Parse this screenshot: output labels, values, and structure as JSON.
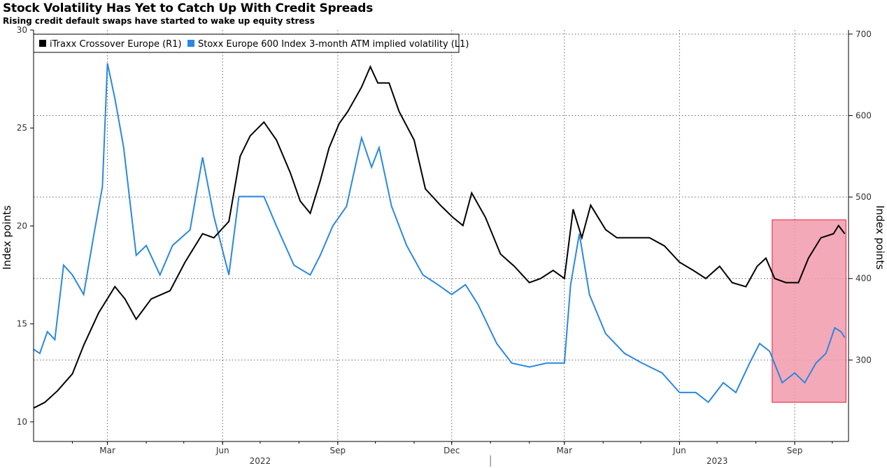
{
  "title": "Stock Volatility Has Yet to Catch Up With Credit Spreads",
  "subtitle": "Rising credit default swaps have started to wake up equity stress",
  "colors": {
    "itraxx": "#000000",
    "vol": "#2a88e0",
    "highlight": "#f29aab",
    "highlight_border": "#e0203a"
  },
  "chart_data": {
    "type": "line",
    "x_start": "2022-01-01",
    "x_end": "2023-10-14",
    "left_axis": {
      "label": "Index points",
      "min": 9,
      "max": 30,
      "ticks": [
        10,
        15,
        20,
        25,
        30
      ]
    },
    "right_axis": {
      "label": "Index points",
      "min": 200,
      "max": 705,
      "ticks": [
        300,
        400,
        500,
        600,
        700
      ]
    },
    "month_ticks": [
      {
        "date": "2022-03-01",
        "label": "Mar"
      },
      {
        "date": "2022-06-01",
        "label": "Jun"
      },
      {
        "date": "2022-09-01",
        "label": "Sep"
      },
      {
        "date": "2022-12-01",
        "label": "Dec"
      },
      {
        "date": "2023-03-01",
        "label": "Mar"
      },
      {
        "date": "2023-06-01",
        "label": "Jun"
      },
      {
        "date": "2023-09-01",
        "label": "Sep"
      }
    ],
    "year_labels": [
      {
        "date": "2022-07-01",
        "label": "2022"
      },
      {
        "date": "2023-07-01",
        "label": "2023"
      }
    ],
    "year_divider": "2023-01-01",
    "highlight": {
      "from": "2023-08-14",
      "to": "2023-10-12"
    },
    "series": [
      {
        "name": "iTraxx Crossover Europe (R1)",
        "axis": "right",
        "points": [
          [
            "2022-01-01",
            241
          ],
          [
            "2022-01-10",
            248
          ],
          [
            "2022-01-20",
            262
          ],
          [
            "2022-02-01",
            283
          ],
          [
            "2022-02-10",
            318
          ],
          [
            "2022-02-22",
            358
          ],
          [
            "2022-03-07",
            390
          ],
          [
            "2022-03-15",
            375
          ],
          [
            "2022-03-24",
            350
          ],
          [
            "2022-04-05",
            375
          ],
          [
            "2022-04-20",
            385
          ],
          [
            "2022-05-02",
            420
          ],
          [
            "2022-05-16",
            455
          ],
          [
            "2022-05-25",
            450
          ],
          [
            "2022-06-06",
            470
          ],
          [
            "2022-06-15",
            550
          ],
          [
            "2022-06-23",
            575
          ],
          [
            "2022-07-04",
            592
          ],
          [
            "2022-07-14",
            570
          ],
          [
            "2022-07-25",
            530
          ],
          [
            "2022-08-02",
            495
          ],
          [
            "2022-08-10",
            480
          ],
          [
            "2022-08-18",
            520
          ],
          [
            "2022-08-25",
            560
          ],
          [
            "2022-09-02",
            590
          ],
          [
            "2022-09-09",
            605
          ],
          [
            "2022-09-20",
            635
          ],
          [
            "2022-09-27",
            660
          ],
          [
            "2022-10-03",
            640
          ],
          [
            "2022-10-12",
            640
          ],
          [
            "2022-10-20",
            605
          ],
          [
            "2022-11-01",
            570
          ],
          [
            "2022-11-10",
            510
          ],
          [
            "2022-11-22",
            490
          ],
          [
            "2022-12-02",
            475
          ],
          [
            "2022-12-10",
            465
          ],
          [
            "2022-12-17",
            505
          ],
          [
            "2022-12-28",
            475
          ],
          [
            "2023-01-09",
            430
          ],
          [
            "2023-01-20",
            415
          ],
          [
            "2023-02-01",
            395
          ],
          [
            "2023-02-10",
            400
          ],
          [
            "2023-02-20",
            410
          ],
          [
            "2023-03-01",
            400
          ],
          [
            "2023-03-08",
            485
          ],
          [
            "2023-03-15",
            450
          ],
          [
            "2023-03-22",
            490
          ],
          [
            "2023-04-03",
            460
          ],
          [
            "2023-04-12",
            450
          ],
          [
            "2023-04-24",
            450
          ],
          [
            "2023-05-08",
            450
          ],
          [
            "2023-05-20",
            440
          ],
          [
            "2023-06-01",
            420
          ],
          [
            "2023-06-12",
            410
          ],
          [
            "2023-06-22",
            400
          ],
          [
            "2023-07-03",
            415
          ],
          [
            "2023-07-13",
            395
          ],
          [
            "2023-07-24",
            390
          ],
          [
            "2023-08-02",
            415
          ],
          [
            "2023-08-09",
            425
          ],
          [
            "2023-08-16",
            400
          ],
          [
            "2023-08-25",
            395
          ],
          [
            "2023-09-04",
            395
          ],
          [
            "2023-09-12",
            425
          ],
          [
            "2023-09-22",
            450
          ],
          [
            "2023-10-02",
            455
          ],
          [
            "2023-10-06",
            465
          ],
          [
            "2023-10-11",
            455
          ]
        ]
      },
      {
        "name": "Stoxx Europe 600 Index 3-month ATM implied volatility (L1)",
        "axis": "left",
        "points": [
          [
            "2022-01-01",
            13.7
          ],
          [
            "2022-01-06",
            13.5
          ],
          [
            "2022-01-12",
            14.6
          ],
          [
            "2022-01-18",
            14.2
          ],
          [
            "2022-01-25",
            18.0
          ],
          [
            "2022-02-01",
            17.5
          ],
          [
            "2022-02-10",
            16.5
          ],
          [
            "2022-02-18",
            19.5
          ],
          [
            "2022-02-25",
            22.0
          ],
          [
            "2022-03-01",
            28.3
          ],
          [
            "2022-03-07",
            26.5
          ],
          [
            "2022-03-14",
            24.0
          ],
          [
            "2022-03-24",
            18.5
          ],
          [
            "2022-04-01",
            19.0
          ],
          [
            "2022-04-12",
            17.5
          ],
          [
            "2022-04-22",
            19.0
          ],
          [
            "2022-05-06",
            19.8
          ],
          [
            "2022-05-16",
            23.5
          ],
          [
            "2022-05-25",
            20.5
          ],
          [
            "2022-06-06",
            17.5
          ],
          [
            "2022-06-14",
            21.5
          ],
          [
            "2022-06-23",
            21.5
          ],
          [
            "2022-07-04",
            21.5
          ],
          [
            "2022-07-14",
            20.0
          ],
          [
            "2022-07-28",
            18.0
          ],
          [
            "2022-08-10",
            17.5
          ],
          [
            "2022-08-18",
            18.5
          ],
          [
            "2022-08-28",
            20.0
          ],
          [
            "2022-09-08",
            21.0
          ],
          [
            "2022-09-20",
            24.5
          ],
          [
            "2022-09-28",
            23.0
          ],
          [
            "2022-10-04",
            24.0
          ],
          [
            "2022-10-14",
            21.0
          ],
          [
            "2022-10-26",
            19.0
          ],
          [
            "2022-11-08",
            17.5
          ],
          [
            "2022-11-20",
            17.0
          ],
          [
            "2022-12-01",
            16.5
          ],
          [
            "2022-12-12",
            17.0
          ],
          [
            "2022-12-22",
            16.0
          ],
          [
            "2023-01-06",
            14.0
          ],
          [
            "2023-01-18",
            13.0
          ],
          [
            "2023-02-01",
            12.8
          ],
          [
            "2023-02-15",
            13.0
          ],
          [
            "2023-03-01",
            13.0
          ],
          [
            "2023-03-06",
            17.0
          ],
          [
            "2023-03-13",
            19.6
          ],
          [
            "2023-03-21",
            16.5
          ],
          [
            "2023-04-03",
            14.5
          ],
          [
            "2023-04-18",
            13.5
          ],
          [
            "2023-05-02",
            13.0
          ],
          [
            "2023-05-18",
            12.5
          ],
          [
            "2023-06-01",
            11.5
          ],
          [
            "2023-06-14",
            11.5
          ],
          [
            "2023-06-24",
            11.0
          ],
          [
            "2023-07-06",
            12.0
          ],
          [
            "2023-07-16",
            11.5
          ],
          [
            "2023-07-27",
            13.0
          ],
          [
            "2023-08-04",
            14.0
          ],
          [
            "2023-08-12",
            13.6
          ],
          [
            "2023-08-22",
            12.0
          ],
          [
            "2023-09-01",
            12.5
          ],
          [
            "2023-09-09",
            12.0
          ],
          [
            "2023-09-18",
            13.0
          ],
          [
            "2023-09-26",
            13.5
          ],
          [
            "2023-10-03",
            14.8
          ],
          [
            "2023-10-08",
            14.6
          ],
          [
            "2023-10-11",
            14.3
          ]
        ]
      }
    ],
    "legend": "top-left",
    "grid": true
  }
}
